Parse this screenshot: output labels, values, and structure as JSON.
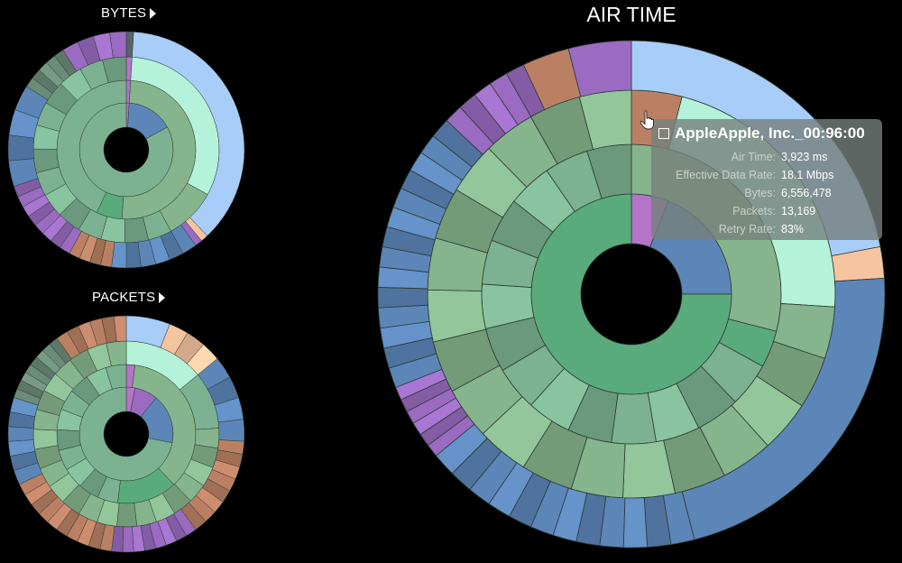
{
  "headers": {
    "bytes_label": "BYTES",
    "packets_label": "PACKETS",
    "main_title": "AIR TIME"
  },
  "palette": {
    "background": "#000000",
    "seafoam": "#7cb291",
    "green": "#5aab7c",
    "sage": "#86b48c",
    "steel_blue": "#5c86b8",
    "sky_blue": "#a8cdf8",
    "mint": "#b4f3da",
    "violet": "#9a6bc0",
    "orchid": "#b574c8",
    "copper": "#bb8064",
    "peach": "#f7c4a0",
    "slate": "#5a626b",
    "grey_green": "#6c8c7a"
  },
  "tooltip": {
    "title": "AppleApple, Inc._00:96:00",
    "rows": [
      {
        "key": "Air Time:",
        "value": "3,923 ms"
      },
      {
        "key": "Effective Data Rate:",
        "value": "18.1 Mbps"
      },
      {
        "key": "Bytes:",
        "value": "6,556,478"
      },
      {
        "key": "Packets:",
        "value": "13,169"
      },
      {
        "key": "Retry Rate:",
        "value": "83%"
      }
    ]
  },
  "chart_data": [
    {
      "type": "sunburst",
      "title": "BYTES",
      "rings": [
        [
          {
            "value": 1,
            "color": "#b574c8"
          },
          {
            "value": 16,
            "color": "#5c86b8"
          },
          {
            "value": 83,
            "color": "#7cb291"
          }
        ],
        [
          {
            "value": 1,
            "color": "#b574c8"
          },
          {
            "value": 50,
            "color": "#86b48c"
          },
          {
            "value": 6,
            "color": "#5aab7c"
          },
          {
            "value": 43,
            "color": "#7cb291"
          }
        ],
        [
          {
            "value": 1,
            "color": "#b574c8"
          },
          {
            "value": 32,
            "color": "#b4f3da"
          },
          {
            "value": 9,
            "color": "#86b48c"
          },
          {
            "value": 58,
            "color": "#7cb291",
            "slices": 14
          }
        ],
        [
          {
            "value": 1,
            "color": "#5a626b"
          },
          {
            "value": 37,
            "color": "#a8cdf8"
          },
          {
            "value": 1,
            "color": "#f7c4a0"
          },
          {
            "value": 1,
            "color": "#9a6bc0"
          },
          {
            "value": 12,
            "color": "#5c86b8",
            "slices": 6
          },
          {
            "value": 6,
            "color": "#bb8064",
            "slices": 4
          },
          {
            "value": 12,
            "color": "#9a6bc0",
            "slices": 8
          },
          {
            "value": 14,
            "color": "#5c86b8",
            "slices": 4
          },
          {
            "value": 7,
            "color": "#6c8c7a",
            "slices": 5
          },
          {
            "value": 9,
            "color": "#9a6bc0",
            "slices": 4
          }
        ]
      ]
    },
    {
      "type": "sunburst",
      "title": "PACKETS",
      "rings": [
        [
          {
            "value": 3,
            "color": "#b574c8"
          },
          {
            "value": 8,
            "color": "#9a6bc0"
          },
          {
            "value": 17,
            "color": "#5c86b8"
          },
          {
            "value": 72,
            "color": "#7cb291"
          }
        ],
        [
          {
            "value": 2,
            "color": "#b574c8"
          },
          {
            "value": 36,
            "color": "#86b48c"
          },
          {
            "value": 14,
            "color": "#5aab7c"
          },
          {
            "value": 48,
            "color": "#7cb291",
            "slices": 10
          }
        ],
        [
          {
            "value": 14,
            "color": "#b4f3da"
          },
          {
            "value": 10,
            "color": "#7cb291"
          },
          {
            "value": 76,
            "color": "#86b48c",
            "slices": 22
          }
        ],
        [
          {
            "value": 6,
            "color": "#a8cdf8"
          },
          {
            "value": 8,
            "color": "#f7c4a0",
            "slices": 3
          },
          {
            "value": 12,
            "color": "#5c86b8",
            "slices": 4
          },
          {
            "value": 14,
            "color": "#bb8064",
            "slices": 8
          },
          {
            "value": 12,
            "color": "#9a6bc0",
            "slices": 8
          },
          {
            "value": 16,
            "color": "#bb8064",
            "slices": 10
          },
          {
            "value": 12,
            "color": "#5c86b8",
            "slices": 6
          },
          {
            "value": 10,
            "color": "#6c8c7a",
            "slices": 8
          },
          {
            "value": 10,
            "color": "#bb8064",
            "slices": 6
          }
        ]
      ]
    },
    {
      "type": "sunburst",
      "title": "AIR TIME",
      "rings": [
        [
          {
            "value": 6,
            "color": "#b574c8"
          },
          {
            "value": 19,
            "color": "#5c86b8"
          },
          {
            "value": 75,
            "color": "#5aab7c"
          }
        ],
        [
          {
            "value": 29,
            "color": "#86b48c"
          },
          {
            "value": 4,
            "color": "#5aab7c"
          },
          {
            "value": 67,
            "color": "#7cb291",
            "slices": 14
          }
        ],
        [
          {
            "value": 4,
            "color": "#bb8064"
          },
          {
            "value": 22,
            "color": "#b4f3da"
          },
          {
            "value": 74,
            "color": "#86b48c",
            "slices": 18
          }
        ],
        [
          {
            "value": 22,
            "color": "#a8cdf8"
          },
          {
            "value": 2,
            "color": "#f7c4a0"
          },
          {
            "value": 22,
            "color": "#5c86b8"
          },
          {
            "value": 18,
            "color": "#5c86b8",
            "slices": 12
          },
          {
            "value": 5,
            "color": "#9a6bc0",
            "slices": 6
          },
          {
            "value": 18,
            "color": "#5c86b8",
            "slices": 14
          },
          {
            "value": 6,
            "color": "#9a6bc0",
            "slices": 5
          },
          {
            "value": 3,
            "color": "#bb8064"
          },
          {
            "value": 4,
            "color": "#9a6bc0"
          }
        ]
      ]
    }
  ]
}
